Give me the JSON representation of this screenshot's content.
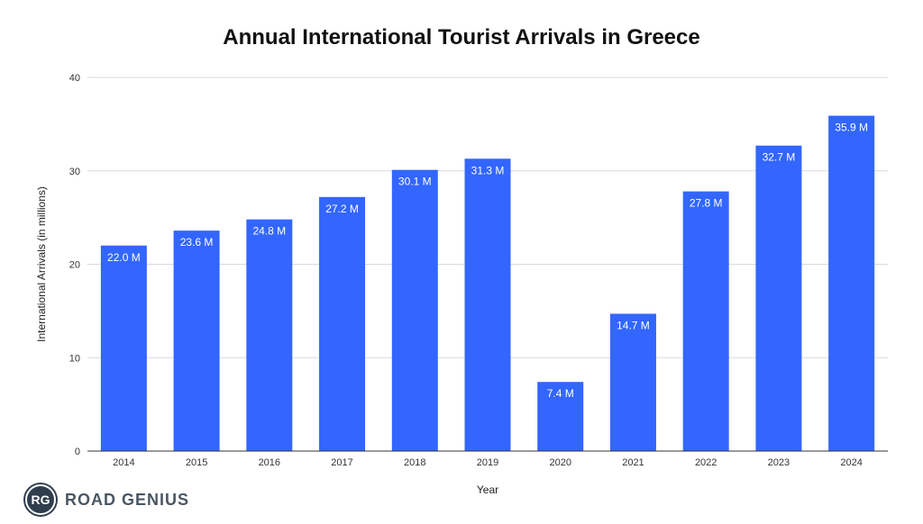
{
  "chart_data": {
    "type": "bar",
    "title": "Annual International Tourist Arrivals in Greece",
    "xlabel": "Year",
    "ylabel": "International Arrivals (in millions)",
    "categories": [
      "2014",
      "2015",
      "2016",
      "2017",
      "2018",
      "2019",
      "2020",
      "2021",
      "2022",
      "2023",
      "2024"
    ],
    "values": [
      22.0,
      23.6,
      24.8,
      27.2,
      30.1,
      31.3,
      7.4,
      14.7,
      27.8,
      32.7,
      35.9
    ],
    "data_labels": [
      "22.0 M",
      "23.6 M",
      "24.8 M",
      "27.2 M",
      "30.1 M",
      "31.3 M",
      "7.4 M",
      "14.7 M",
      "27.8 M",
      "32.7 M",
      "35.9 M"
    ],
    "ylim": [
      0,
      40
    ],
    "yticks": [
      0,
      10,
      20,
      30,
      40
    ],
    "grid": true,
    "legend": "none",
    "bar_color": "#3366ff"
  },
  "logo": {
    "badge": "RG",
    "text": "ROAD GENIUS"
  }
}
